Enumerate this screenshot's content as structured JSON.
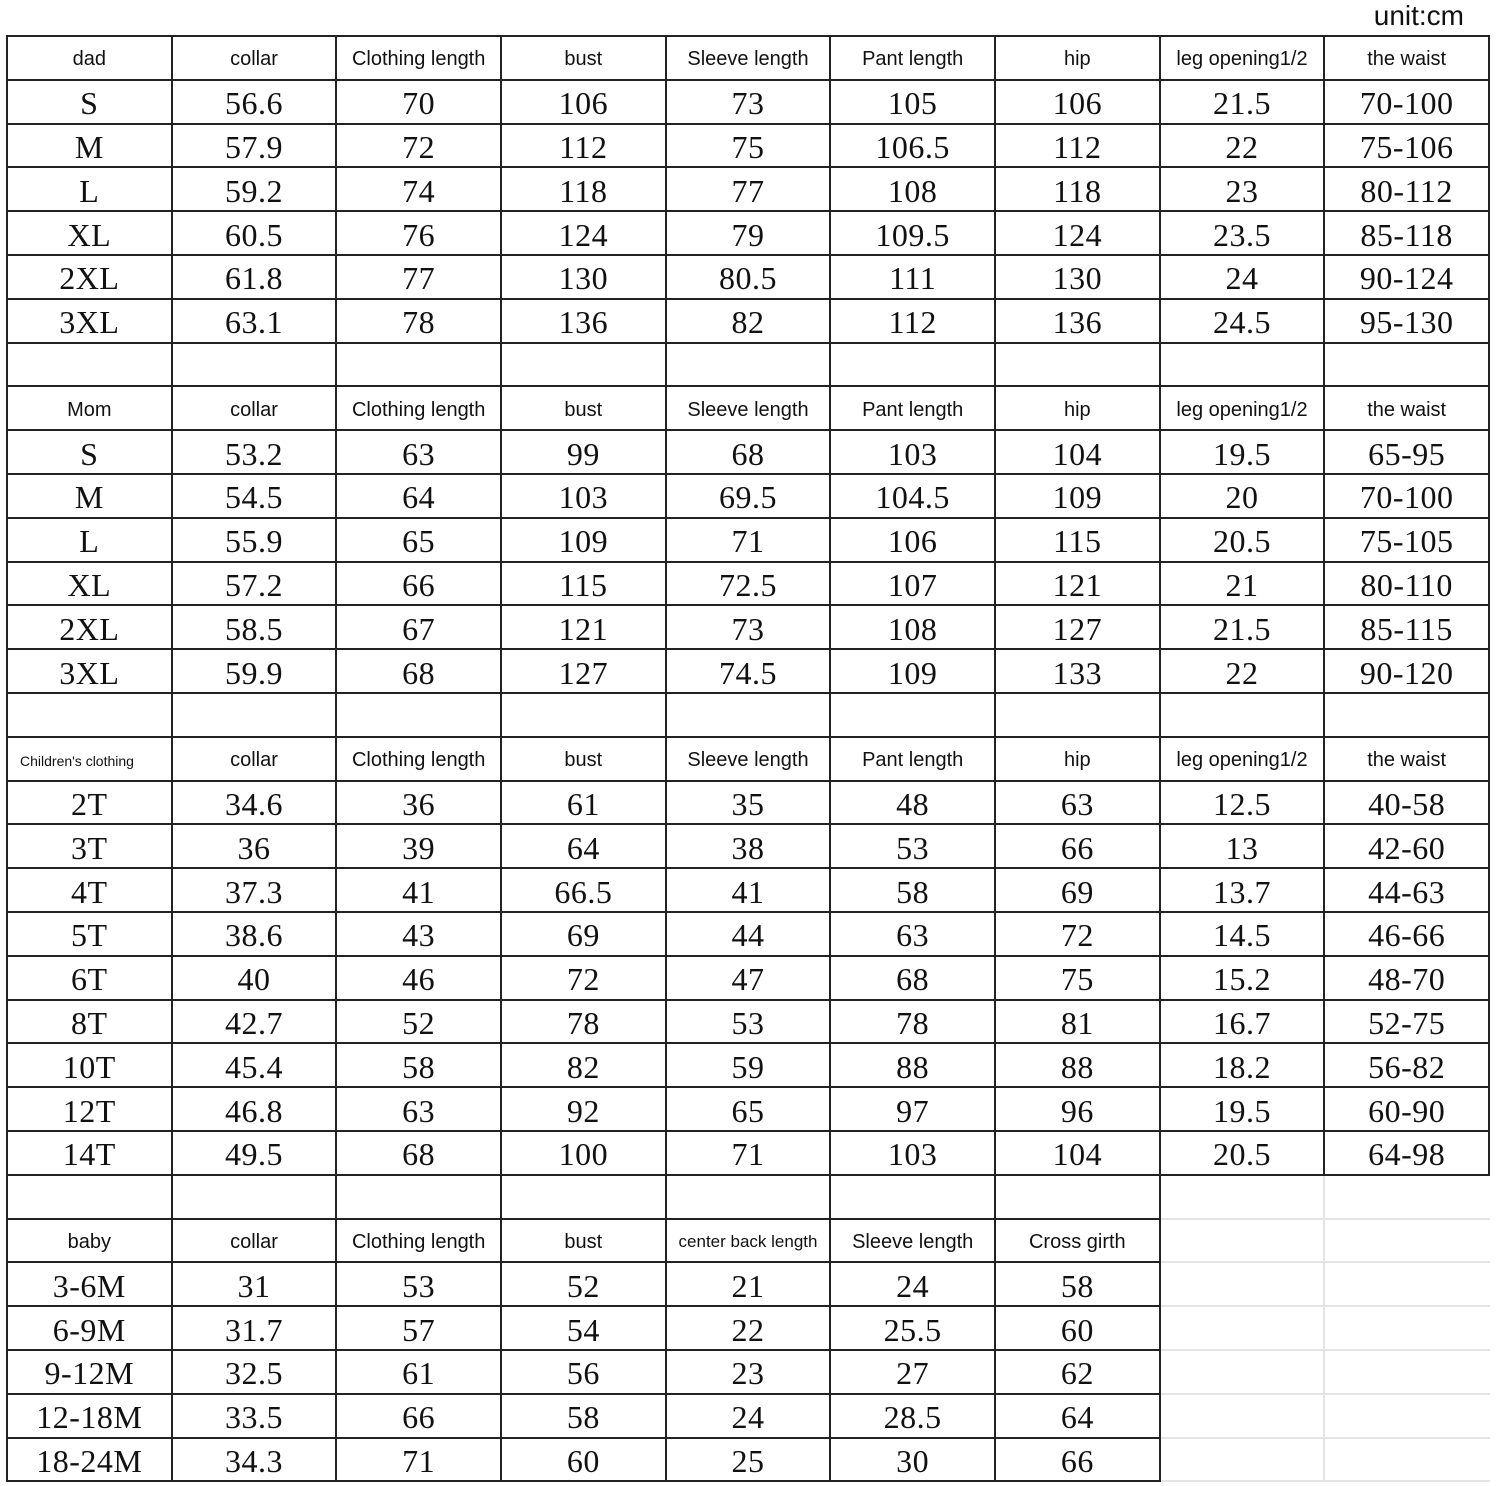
{
  "unit_label": "unit:cm",
  "sections": [
    {
      "headers": [
        "dad",
        "collar",
        "Clothing length",
        "bust",
        "Sleeve length",
        "Pant length",
        "hip",
        "leg opening1/2",
        "the waist"
      ],
      "rows": [
        [
          "S",
          "56.6",
          "70",
          "106",
          "73",
          "105",
          "106",
          "21.5",
          "70-100"
        ],
        [
          "M",
          "57.9",
          "72",
          "112",
          "75",
          "106.5",
          "112",
          "22",
          "75-106"
        ],
        [
          "L",
          "59.2",
          "74",
          "118",
          "77",
          "108",
          "118",
          "23",
          "80-112"
        ],
        [
          "XL",
          "60.5",
          "76",
          "124",
          "79",
          "109.5",
          "124",
          "23.5",
          "85-118"
        ],
        [
          "2XL",
          "61.8",
          "77",
          "130",
          "80.5",
          "111",
          "130",
          "24",
          "90-124"
        ],
        [
          "3XL",
          "63.1",
          "78",
          "136",
          "82",
          "112",
          "136",
          "24.5",
          "95-130"
        ]
      ]
    },
    {
      "headers": [
        "Mom",
        "collar",
        "Clothing length",
        "bust",
        "Sleeve length",
        "Pant length",
        "hip",
        "leg opening1/2",
        "the waist"
      ],
      "rows": [
        [
          "S",
          "53.2",
          "63",
          "99",
          "68",
          "103",
          "104",
          "19.5",
          "65-95"
        ],
        [
          "M",
          "54.5",
          "64",
          "103",
          "69.5",
          "104.5",
          "109",
          "20",
          "70-100"
        ],
        [
          "L",
          "55.9",
          "65",
          "109",
          "71",
          "106",
          "115",
          "20.5",
          "75-105"
        ],
        [
          "XL",
          "57.2",
          "66",
          "115",
          "72.5",
          "107",
          "121",
          "21",
          "80-110"
        ],
        [
          "2XL",
          "58.5",
          "67",
          "121",
          "73",
          "108",
          "127",
          "21.5",
          "85-115"
        ],
        [
          "3XL",
          "59.9",
          "68",
          "127",
          "74.5",
          "109",
          "133",
          "22",
          "90-120"
        ]
      ]
    },
    {
      "headers": [
        "Children's clothing",
        "collar",
        "Clothing length",
        "bust",
        "Sleeve length",
        "Pant length",
        "hip",
        "leg opening1/2",
        "the waist"
      ],
      "rows": [
        [
          "2T",
          "34.6",
          "36",
          "61",
          "35",
          "48",
          "63",
          "12.5",
          "40-58"
        ],
        [
          "3T",
          "36",
          "39",
          "64",
          "38",
          "53",
          "66",
          "13",
          "42-60"
        ],
        [
          "4T",
          "37.3",
          "41",
          "66.5",
          "41",
          "58",
          "69",
          "13.7",
          "44-63"
        ],
        [
          "5T",
          "38.6",
          "43",
          "69",
          "44",
          "63",
          "72",
          "14.5",
          "46-66"
        ],
        [
          "6T",
          "40",
          "46",
          "72",
          "47",
          "68",
          "75",
          "15.2",
          "48-70"
        ],
        [
          "8T",
          "42.7",
          "52",
          "78",
          "53",
          "78",
          "81",
          "16.7",
          "52-75"
        ],
        [
          "10T",
          "45.4",
          "58",
          "82",
          "59",
          "88",
          "88",
          "18.2",
          "56-82"
        ],
        [
          "12T",
          "46.8",
          "63",
          "92",
          "65",
          "97",
          "96",
          "19.5",
          "60-90"
        ],
        [
          "14T",
          "49.5",
          "68",
          "100",
          "71",
          "103",
          "104",
          "20.5",
          "64-98"
        ]
      ]
    },
    {
      "headers": [
        "baby",
        "collar",
        "Clothing length",
        "bust",
        "center back length",
        "Sleeve length",
        "Cross girth"
      ],
      "rows": [
        [
          "3-6M",
          "31",
          "53",
          "52",
          "21",
          "24",
          "58"
        ],
        [
          "6-9M",
          "31.7",
          "57",
          "54",
          "22",
          "25.5",
          "60"
        ],
        [
          "9-12M",
          "32.5",
          "61",
          "56",
          "23",
          "27",
          "62"
        ],
        [
          "12-18M",
          "33.5",
          "66",
          "58",
          "24",
          "28.5",
          "64"
        ],
        [
          "18-24M",
          "34.3",
          "71",
          "60",
          "25",
          "30",
          "66"
        ]
      ]
    }
  ]
}
